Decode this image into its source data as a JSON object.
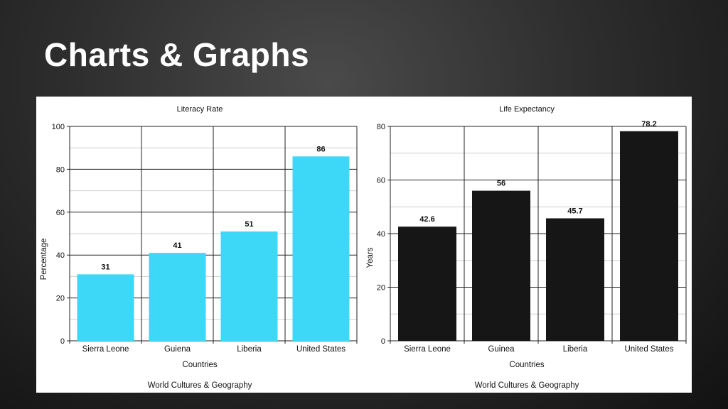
{
  "slide": {
    "title": "Charts & Graphs"
  },
  "chart_data": [
    {
      "type": "bar",
      "title": "Literacy Rate",
      "xlabel": "Countries",
      "ylabel": "Percentage",
      "caption": "World Cultures & Geography",
      "categories": [
        "Sierra Leone",
        "Guiena",
        "Liberia",
        "United States"
      ],
      "values": [
        31,
        41,
        51,
        86
      ],
      "value_labels": [
        "31",
        "41",
        "51",
        "86"
      ],
      "ylim": [
        0,
        100
      ],
      "yticks": [
        0,
        20,
        40,
        60,
        80,
        100
      ],
      "minor_step": 10,
      "grid": true,
      "bar_color": "#3dd8f7"
    },
    {
      "type": "bar",
      "title": "Life Expectancy",
      "xlabel": "Countries",
      "ylabel": "Years",
      "caption": "World Cultures & Geography",
      "categories": [
        "Sierra Leone",
        "Guinea",
        "Liberia",
        "United States"
      ],
      "values": [
        42.6,
        56,
        45.7,
        78.2
      ],
      "value_labels": [
        "42.6",
        "56",
        "45.7",
        "78.2"
      ],
      "ylim": [
        0,
        80
      ],
      "yticks": [
        0,
        20,
        40,
        60,
        80
      ],
      "minor_step": 10,
      "grid": true,
      "bar_color": "#161616"
    }
  ]
}
